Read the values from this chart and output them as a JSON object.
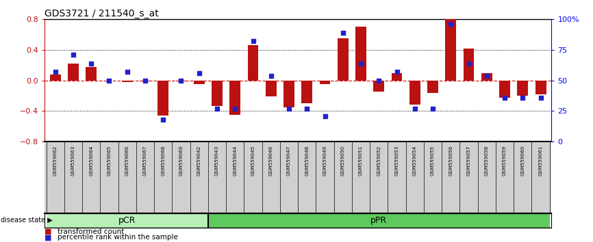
{
  "title": "GDS3721 / 211540_s_at",
  "samples": [
    "GSM559062",
    "GSM559063",
    "GSM559064",
    "GSM559065",
    "GSM559066",
    "GSM559067",
    "GSM559068",
    "GSM559069",
    "GSM559042",
    "GSM559043",
    "GSM559044",
    "GSM559045",
    "GSM559046",
    "GSM559047",
    "GSM559048",
    "GSM559049",
    "GSM559050",
    "GSM559051",
    "GSM559052",
    "GSM559053",
    "GSM559054",
    "GSM559055",
    "GSM559056",
    "GSM559057",
    "GSM559058",
    "GSM559059",
    "GSM559060",
    "GSM559061"
  ],
  "transformed_count": [
    0.08,
    0.22,
    0.18,
    0.0,
    -0.02,
    -0.01,
    -0.46,
    -0.01,
    -0.05,
    -0.33,
    -0.45,
    0.46,
    -0.21,
    -0.35,
    -0.3,
    -0.05,
    0.55,
    0.7,
    -0.15,
    0.1,
    -0.32,
    -0.16,
    0.8,
    0.42,
    0.1,
    -0.23,
    -0.2,
    -0.18
  ],
  "percentile_rank": [
    57,
    71,
    64,
    50,
    57,
    50,
    18,
    50,
    56,
    27,
    27,
    82,
    54,
    27,
    27,
    21,
    89,
    64,
    50,
    57,
    27,
    27,
    96,
    64,
    54,
    36,
    36,
    36
  ],
  "pCR_count": 9,
  "pPR_count": 19,
  "ylim": [
    -0.8,
    0.8
  ],
  "yticks_left": [
    -0.8,
    -0.4,
    0.0,
    0.4,
    0.8
  ],
  "yticks_right": [
    0,
    25,
    50,
    75,
    100
  ],
  "bar_color": "#bb1111",
  "dot_color": "#2222cc",
  "zero_line_color": "#cc2222",
  "pCR_color": "#b8f0b8",
  "pPR_color": "#5ec95e",
  "label_bg": "#d0d0d0",
  "bg_color": "#ffffff"
}
